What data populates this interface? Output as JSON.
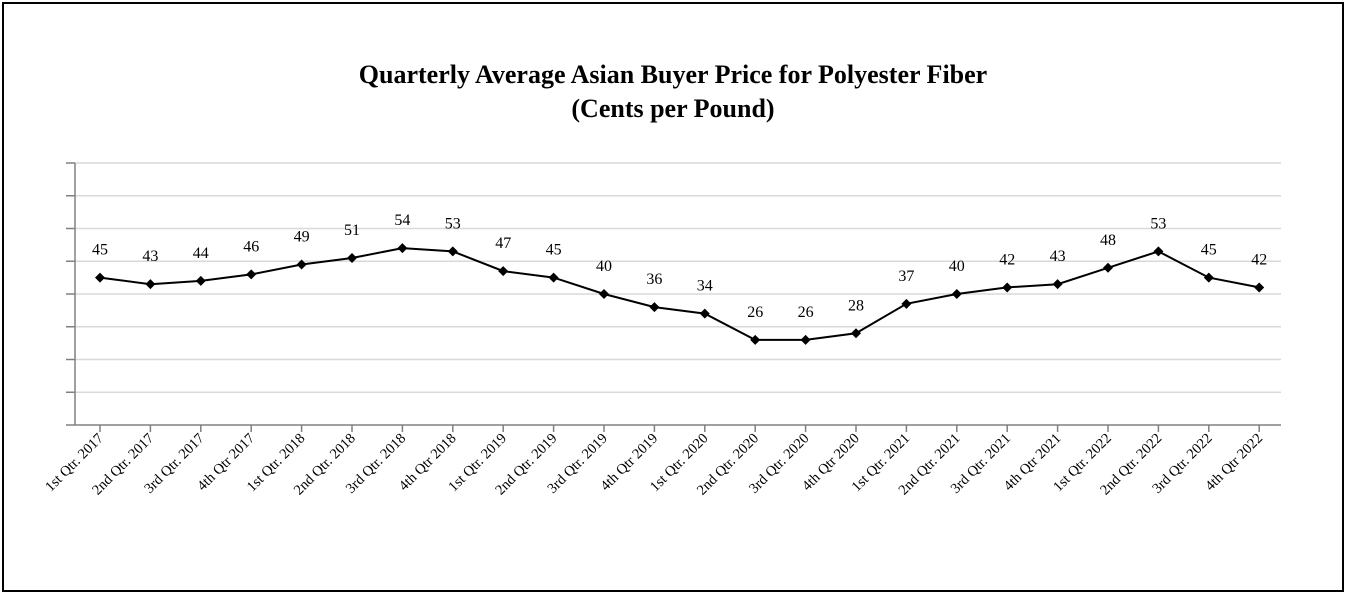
{
  "chart_data": {
    "type": "line",
    "title": "Quarterly Average Asian Buyer Price for Polyester Fiber",
    "subtitle": "(Cents per Pound)",
    "xlabel": "",
    "ylabel": "",
    "ylim": [
      0,
      80
    ],
    "grid": true,
    "legend": "none",
    "categories": [
      "1st Qtr. 2017",
      "2nd Qtr. 2017",
      "3rd Qtr. 2017",
      "4th Qtr 2017",
      "1st Qtr. 2018",
      "2nd Qtr. 2018",
      "3rd Qtr. 2018",
      "4th Qtr 2018",
      "1st Qtr. 2019",
      "2nd Qtr. 2019",
      "3rd Qtr. 2019",
      "4th Qtr 2019",
      "1st Qtr. 2020",
      "2nd Qtr. 2020",
      "3rd Qtr. 2020",
      "4th Qtr 2020",
      "1st Qtr. 2021",
      "2nd Qtr. 2021",
      "3rd Qtr. 2021",
      "4th Qtr 2021",
      "1st Qtr. 2022",
      "2nd Qtr. 2022",
      "3rd Qtr. 2022",
      "4th Qtr 2022"
    ],
    "series": [
      {
        "values": [
          45,
          43,
          44,
          46,
          49,
          51,
          54,
          53,
          47,
          45,
          40,
          36,
          34,
          26,
          26,
          28,
          37,
          40,
          42,
          43,
          48,
          53,
          45,
          42
        ],
        "color": "#000000",
        "marker": "diamond"
      }
    ]
  }
}
